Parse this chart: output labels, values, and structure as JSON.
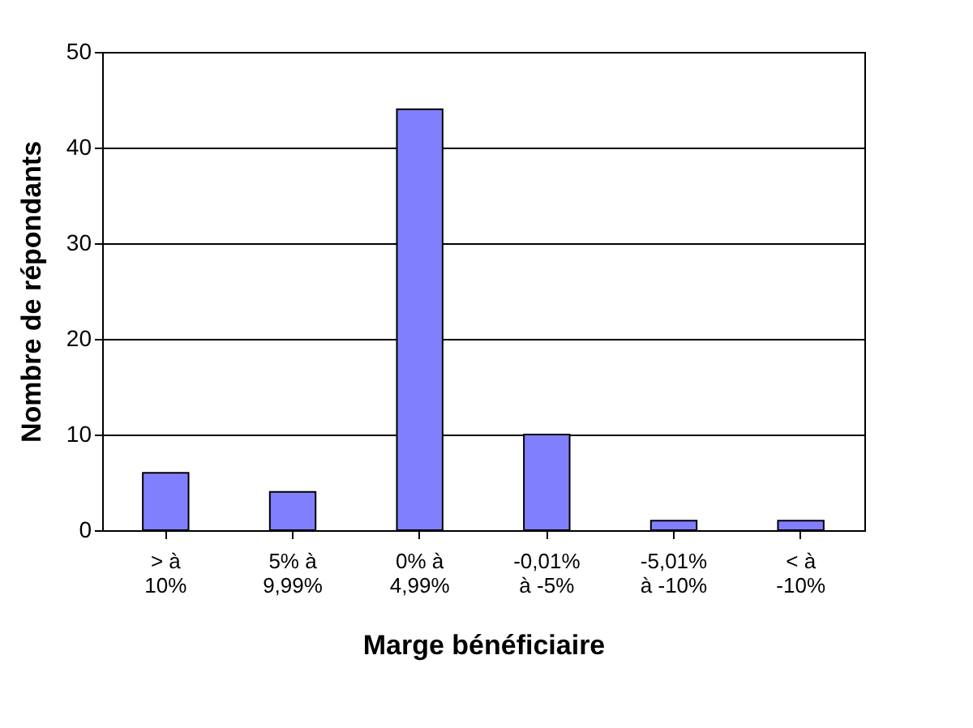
{
  "chart_data": {
    "type": "bar",
    "xlabel": "Marge bénéficiaire",
    "ylabel": "Nombre de répondants",
    "categories": [
      "> à\n10%",
      "5% à\n9,99%",
      "0% à\n4,99%",
      "-0,01%\nà -5%",
      "-5,01%\nà -10%",
      "< à\n-10%"
    ],
    "values": [
      6,
      4,
      44,
      10,
      1,
      1
    ],
    "color": "#8080ff",
    "ylim": [
      0,
      50
    ],
    "yticks": [
      0,
      10,
      20,
      30,
      40,
      50
    ],
    "grid": "y"
  }
}
